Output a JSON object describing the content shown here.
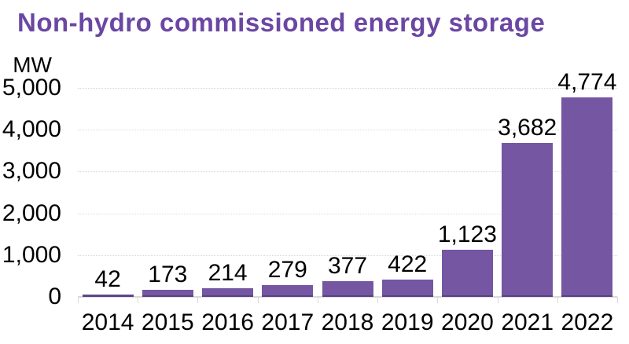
{
  "chart_data": {
    "type": "bar",
    "title": "Non-hydro commissioned energy storage",
    "ylabel": "MW",
    "xlabel": "",
    "categories": [
      "2014",
      "2015",
      "2016",
      "2017",
      "2018",
      "2019",
      "2020",
      "2021",
      "2022"
    ],
    "values": [
      42,
      173,
      214,
      279,
      377,
      422,
      1123,
      3682,
      4774
    ],
    "value_labels": [
      "42",
      "173",
      "214",
      "279",
      "377",
      "422",
      "1,123",
      "3,682",
      "4,774"
    ],
    "y_tick_values": [
      0,
      1000,
      2000,
      3000,
      4000,
      5000
    ],
    "y_tick_labels": [
      "0",
      "1,000",
      "2,000",
      "3,000",
      "4,000",
      "5,000"
    ],
    "ylim": [
      0,
      5000
    ],
    "grid": "horizontal-dotted",
    "legend": "none",
    "colors": {
      "bar": "#7456a3",
      "bar_bottom_edge": "#5a3f82",
      "title": "#6b47a3",
      "grid": "#d9d9d9",
      "axis": "#d9d9d9",
      "text": "#000000",
      "background": "#ffffff"
    }
  }
}
